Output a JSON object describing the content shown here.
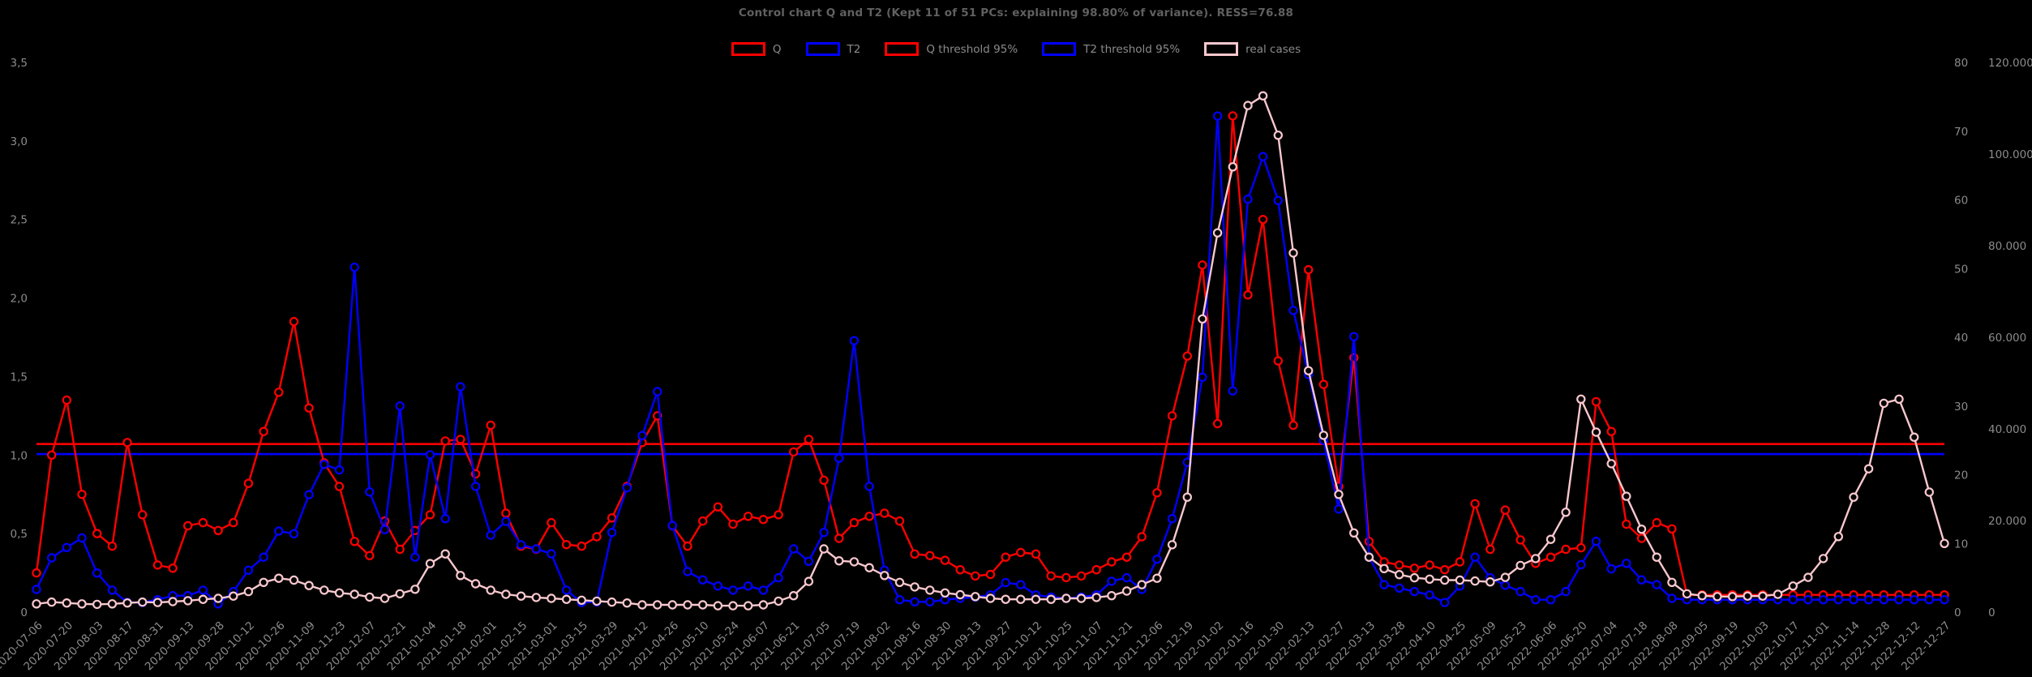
{
  "title": "Control chart Q and T2 (Kept 11 of 51 PCs: explaining 98.80% of variance). RESS=76.88",
  "colors": {
    "background": "#000000",
    "title": "#606060",
    "tick_text": "#8b8b8b",
    "q": "#ff0000",
    "t2": "#0000ff",
    "real_cases": "#f8c8ce"
  },
  "chart_data": {
    "type": "line",
    "title": "Control chart Q and T2 (Kept 11 of 51 PCs: explaining 98.80% of variance). RESS=76.88",
    "grid": false,
    "legend_position": "top-center",
    "points_per_tick": 2,
    "legend": [
      {
        "id": "q",
        "label": "Q",
        "color": "#ff0000"
      },
      {
        "id": "t2",
        "label": "T2",
        "color": "#0000ff"
      },
      {
        "id": "q-threshold",
        "label": "Q threshold 95%",
        "color": "#ff0000"
      },
      {
        "id": "t2-threshold",
        "label": "T2 threshold 95%",
        "color": "#0000ff"
      },
      {
        "id": "real-cases",
        "label": "real cases",
        "color": "#f8c8ce"
      }
    ],
    "axes": {
      "left": {
        "min": 0,
        "max": 3.5,
        "tick_step": 0.5,
        "tick_labels": [
          "0",
          "0,5",
          "1,0",
          "1,5",
          "2,0",
          "2,5",
          "3,0",
          "3,5"
        ]
      },
      "t2": {
        "min": 0,
        "max": 80,
        "tick_step": 10,
        "tick_labels": [
          "0",
          "10",
          "20",
          "30",
          "40",
          "50",
          "60",
          "70",
          "80"
        ]
      },
      "cases": {
        "min": 0,
        "max": 120000,
        "tick_step": 20000,
        "tick_labels": [
          "0",
          "20.000",
          "40.000",
          "60.000",
          "80.000",
          "100.000",
          "120.000"
        ]
      }
    },
    "x_tick_labels": [
      "2020-07-06",
      "2020-07-20",
      "2020-08-03",
      "2020-08-17",
      "2020-08-31",
      "2020-09-13",
      "2020-09-28",
      "2020-10-12",
      "2020-10-26",
      "2020-11-09",
      "2020-11-23",
      "2020-12-07",
      "2020-12-21",
      "2021-01-04",
      "2021-01-18",
      "2021-02-01",
      "2021-02-15",
      "2021-03-01",
      "2021-03-15",
      "2021-03-29",
      "2021-04-12",
      "2021-04-26",
      "2021-05-10",
      "2021-05-24",
      "2021-06-07",
      "2021-06-21",
      "2021-07-05",
      "2021-07-19",
      "2021-08-02",
      "2021-08-16",
      "2021-08-30",
      "2021-09-13",
      "2021-09-27",
      "2021-10-12",
      "2021-10-25",
      "2021-11-07",
      "2021-11-21",
      "2021-12-06",
      "2021-12-19",
      "2022-01-02",
      "2022-01-16",
      "2022-01-30",
      "2022-02-13",
      "2022-02-27",
      "2022-03-13",
      "2022-03-28",
      "2022-04-10",
      "2022-04-25",
      "2022-05-09",
      "2022-05-23",
      "2022-06-06",
      "2022-06-20",
      "2022-07-04",
      "2022-07-18",
      "2022-08-08",
      "2022-09-05",
      "2022-09-19",
      "2022-10-03",
      "2022-10-17",
      "2022-11-01",
      "2022-11-14",
      "2022-11-28",
      "2022-12-12",
      "2022-12-27"
    ],
    "thresholds": [
      {
        "id": "q-threshold",
        "name": "Q threshold 95%",
        "axis": "left",
        "value": 1.07,
        "color": "#ff0000"
      },
      {
        "id": "t2-threshold",
        "name": "T2 threshold 95%",
        "axis": "t2",
        "value": 23.0,
        "color": "#0000ff"
      }
    ],
    "series": [
      {
        "id": "q",
        "name": "Q",
        "axis": "left",
        "color": "#ff0000",
        "values": [
          0.25,
          1.0,
          1.35,
          0.75,
          0.5,
          0.42,
          1.08,
          0.62,
          0.3,
          0.28,
          0.55,
          0.57,
          0.52,
          0.57,
          0.82,
          1.15,
          1.4,
          1.85,
          1.3,
          0.95,
          0.8,
          0.45,
          0.36,
          0.58,
          0.4,
          0.52,
          0.62,
          1.09,
          1.1,
          0.88,
          1.19,
          0.63,
          0.42,
          0.4,
          0.57,
          0.43,
          0.42,
          0.48,
          0.6,
          0.8,
          1.08,
          1.25,
          0.55,
          0.42,
          0.58,
          0.67,
          0.56,
          0.61,
          0.59,
          0.62,
          1.02,
          1.1,
          0.84,
          0.47,
          0.57,
          0.61,
          0.63,
          0.58,
          0.37,
          0.36,
          0.33,
          0.27,
          0.23,
          0.24,
          0.35,
          0.38,
          0.37,
          0.23,
          0.22,
          0.23,
          0.27,
          0.32,
          0.35,
          0.48,
          0.76,
          1.25,
          1.63,
          2.21,
          1.2,
          3.16,
          2.02,
          2.5,
          1.6,
          1.19,
          2.18,
          1.45,
          0.8,
          1.62,
          0.45,
          0.32,
          0.3,
          0.28,
          0.3,
          0.27,
          0.32,
          0.69,
          0.4,
          0.65,
          0.46,
          0.31,
          0.35,
          0.4,
          0.41,
          1.34,
          1.15,
          0.56,
          0.47,
          0.57,
          0.53,
          0.11,
          0.11,
          0.11,
          0.11,
          0.11,
          0.11,
          0.11,
          0.11,
          0.11,
          0.11,
          0.11,
          0.11,
          0.11,
          0.11,
          0.11,
          0.11,
          0.11,
          0.11
        ]
      },
      {
        "id": "t2",
        "name": "T2",
        "axis": "t2",
        "color": "#0000ff",
        "values": [
          3.3,
          7.9,
          9.4,
          10.8,
          5.7,
          3.2,
          1.4,
          1.4,
          1.8,
          2.4,
          2.4,
          3.2,
          1.2,
          3.0,
          6.1,
          8.0,
          11.8,
          11.4,
          17.1,
          21.5,
          20.7,
          50.2,
          17.5,
          12.0,
          30.0,
          8.0,
          22.9,
          13.6,
          32.8,
          18.3,
          11.2,
          13.2,
          9.8,
          9.2,
          8.5,
          3.2,
          1.4,
          1.5,
          11.6,
          18.1,
          25.7,
          32.1,
          12.6,
          5.9,
          4.7,
          3.8,
          3.2,
          3.8,
          3.2,
          5.0,
          9.2,
          7.4,
          11.6,
          22.4,
          39.5,
          18.3,
          6.1,
          1.8,
          1.5,
          1.5,
          1.8,
          2.0,
          2.2,
          2.5,
          4.3,
          4.0,
          2.5,
          2.2,
          2.0,
          2.2,
          2.5,
          4.5,
          5.0,
          3.3,
          7.7,
          13.6,
          21.8,
          34.2,
          72.2,
          32.2,
          60.1,
          66.3,
          59.9,
          43.9,
          34.6,
          25.0,
          15.0,
          40.1,
          8.0,
          4.0,
          3.5,
          3.0,
          2.5,
          1.4,
          3.8,
          8.0,
          5.0,
          3.9,
          3.0,
          1.8,
          1.8,
          3.0,
          6.9,
          10.3,
          6.3,
          7.1,
          4.7,
          4.0,
          2.0,
          1.8,
          1.8,
          1.8,
          1.8,
          1.8,
          1.8,
          1.8,
          1.8,
          1.8,
          1.8,
          1.8,
          1.8,
          1.8,
          1.8,
          1.8,
          1.8,
          1.8,
          1.8
        ]
      },
      {
        "id": "real-cases",
        "name": "real cases",
        "axis": "cases",
        "color": "#f8c8ce",
        "values": [
          1800,
          2200,
          2000,
          1800,
          1700,
          1800,
          2000,
          2200,
          2100,
          2300,
          2500,
          2800,
          3000,
          3500,
          4500,
          6500,
          7400,
          7000,
          5800,
          4800,
          4200,
          3900,
          3300,
          3000,
          4000,
          5000,
          10600,
          12700,
          8000,
          6200,
          4800,
          3900,
          3500,
          3200,
          3000,
          2800,
          2600,
          2400,
          2200,
          2000,
          1600,
          1600,
          1600,
          1600,
          1600,
          1400,
          1400,
          1400,
          1600,
          2400,
          3600,
          6700,
          13800,
          11200,
          11000,
          9700,
          8000,
          6500,
          5500,
          4800,
          4200,
          3800,
          3400,
          3000,
          2800,
          2800,
          2800,
          2800,
          3000,
          3000,
          3200,
          3600,
          4600,
          6000,
          7400,
          14700,
          25100,
          64000,
          82800,
          97200,
          110600,
          112700,
          104100,
          78400,
          52700,
          38600,
          25700,
          17300,
          12000,
          9500,
          8200,
          7500,
          7200,
          7000,
          7000,
          6800,
          6600,
          7600,
          10200,
          11700,
          15900,
          21800,
          46500,
          39300,
          32400,
          25300,
          18100,
          12000,
          6500,
          4000,
          3600,
          3400,
          3400,
          3500,
          3500,
          3900,
          5700,
          7600,
          11700,
          16500,
          25100,
          31300,
          45600,
          46500,
          38200,
          26200,
          15000
        ]
      }
    ]
  }
}
